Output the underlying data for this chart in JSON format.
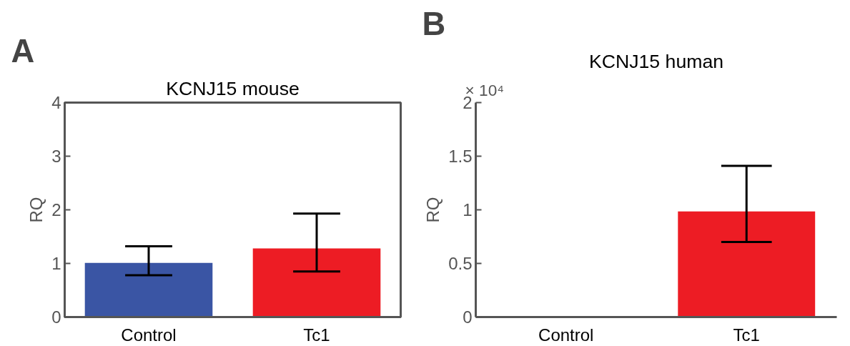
{
  "chart_data": [
    {
      "type": "bar",
      "title": "KCNJ15 mouse",
      "ylabel": "RQ",
      "categories": [
        "Control",
        "Tc1"
      ],
      "values": [
        1.01,
        1.28
      ],
      "colors": [
        "#3a55a4",
        "#ed1c24"
      ],
      "errors": [
        [
          0.78,
          1.32
        ],
        [
          0.85,
          1.93
        ]
      ],
      "ylim": [
        0,
        4
      ],
      "yticks": [
        0,
        1,
        2,
        3,
        4
      ],
      "grid": false,
      "annotations": [
        "A"
      ]
    },
    {
      "type": "bar",
      "title": "KCNJ15 human",
      "ylabel": "RQ",
      "categories": [
        "Control",
        "Tc1"
      ],
      "values": [
        0,
        0.985
      ],
      "colors": [
        "#3a55a4",
        "#ed1c24"
      ],
      "errors": [
        null,
        [
          0.7,
          1.41
        ]
      ],
      "ylim": [
        0,
        2
      ],
      "yticks": [
        0,
        0.5,
        1,
        1.5,
        2
      ],
      "grid": false,
      "annotations": [
        "B",
        "× 10⁴"
      ]
    }
  ]
}
